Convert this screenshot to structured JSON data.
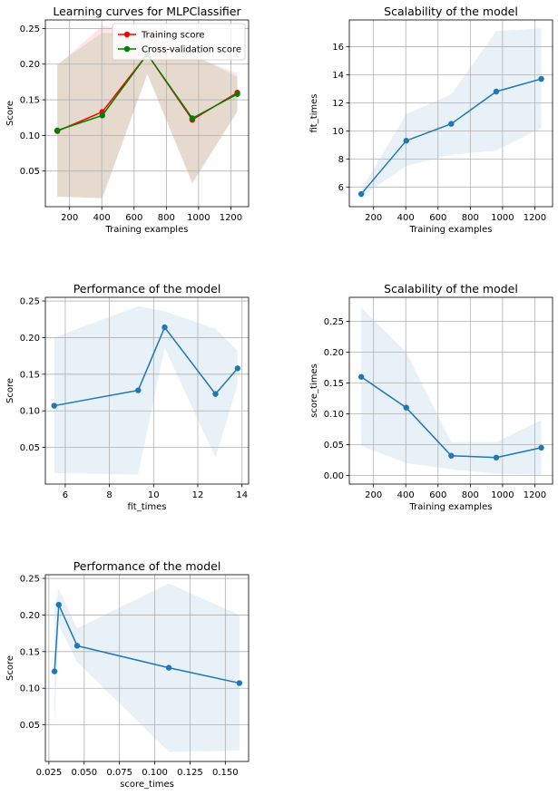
{
  "chart_data": [
    {
      "id": "learning-curves",
      "type": "line",
      "title": "Learning curves for MLPClassifier",
      "xlabel": "Training examples",
      "ylabel": "Score",
      "xlim": [
        50,
        1310
      ],
      "ylim": [
        0.0,
        0.262
      ],
      "xticks": [
        200,
        400,
        600,
        800,
        1000,
        1200
      ],
      "yticks": [
        0.05,
        0.1,
        0.15,
        0.2,
        0.25
      ],
      "ytick_labels": [
        "0.05",
        "0.10",
        "0.15",
        "0.20",
        "0.25"
      ],
      "grid": true,
      "legend": "top-right",
      "x": [
        124,
        403,
        682,
        961,
        1240
      ],
      "series": [
        {
          "name": "Training score",
          "color": "#ff0000",
          "values": [
            0.106,
            0.133,
            0.214,
            0.122,
            0.16
          ],
          "band_lower": [
            0.014,
            0.012,
            0.186,
            0.032,
            0.133
          ],
          "band_upper": [
            0.198,
            0.254,
            0.242,
            0.212,
            0.187
          ]
        },
        {
          "name": "Cross-validation score",
          "color": "#008000",
          "values": [
            0.107,
            0.128,
            0.214,
            0.124,
            0.158
          ],
          "band_lower": [
            0.014,
            0.012,
            0.186,
            0.034,
            0.134
          ],
          "band_upper": [
            0.2,
            0.244,
            0.242,
            0.214,
            0.182
          ]
        }
      ]
    },
    {
      "id": "scalability-fit",
      "type": "line",
      "title": "Scalability of the model",
      "xlabel": "Training examples",
      "ylabel": "fit_times",
      "xlim": [
        50,
        1310
      ],
      "ylim": [
        4.6,
        17.9
      ],
      "xticks": [
        200,
        400,
        600,
        800,
        1000,
        1200
      ],
      "yticks": [
        6,
        8,
        10,
        12,
        14,
        16
      ],
      "ytick_labels": [
        "6",
        "8",
        "10",
        "12",
        "14",
        "16"
      ],
      "grid": true,
      "x": [
        124,
        403,
        682,
        961,
        1240
      ],
      "series": [
        {
          "color": "#1f77b4",
          "values": [
            5.5,
            9.3,
            10.5,
            12.8,
            13.7
          ],
          "band_lower": [
            5.3,
            7.5,
            8.3,
            8.6,
            10.2
          ],
          "band_upper": [
            5.8,
            11.2,
            12.6,
            17.1,
            17.3
          ]
        }
      ]
    },
    {
      "id": "performance-fit",
      "type": "line",
      "title": "Performance of the model",
      "xlabel": "fit_times",
      "ylabel": "Score",
      "xlim": [
        5.1,
        14.3
      ],
      "ylim": [
        0.0,
        0.255
      ],
      "xticks": [
        6,
        8,
        10,
        12,
        14
      ],
      "yticks": [
        0.05,
        0.1,
        0.15,
        0.2,
        0.25
      ],
      "ytick_labels": [
        "0.05",
        "0.10",
        "0.15",
        "0.20",
        "0.25"
      ],
      "grid": true,
      "x": [
        5.5,
        9.3,
        10.5,
        12.8,
        13.8
      ],
      "series": [
        {
          "color": "#1f77b4",
          "values": [
            0.107,
            0.128,
            0.214,
            0.123,
            0.158
          ],
          "band_lower": [
            0.015,
            0.013,
            0.186,
            0.036,
            0.136
          ],
          "band_upper": [
            0.2,
            0.243,
            0.236,
            0.212,
            0.182
          ]
        }
      ]
    },
    {
      "id": "scalability-score",
      "type": "line",
      "title": "Scalability of the model",
      "xlabel": "Training examples",
      "ylabel": "score_times",
      "xlim": [
        50,
        1310
      ],
      "ylim": [
        -0.014,
        0.289
      ],
      "xticks": [
        200,
        400,
        600,
        800,
        1000,
        1200
      ],
      "yticks": [
        0.0,
        0.05,
        0.1,
        0.15,
        0.2,
        0.25
      ],
      "ytick_labels": [
        "0.00",
        "0.05",
        "0.10",
        "0.15",
        "0.20",
        "0.25"
      ],
      "grid": true,
      "x": [
        124,
        403,
        682,
        961,
        1240
      ],
      "series": [
        {
          "color": "#1f77b4",
          "values": [
            0.16,
            0.11,
            0.032,
            0.029,
            0.045
          ],
          "band_lower": [
            0.048,
            0.02,
            0.01,
            0.003,
            0.001
          ],
          "band_upper": [
            0.272,
            0.2,
            0.054,
            0.054,
            0.09
          ]
        }
      ]
    },
    {
      "id": "performance-score",
      "type": "line",
      "title": "Performance of the model",
      "xlabel": "score_times",
      "ylabel": "Score",
      "xlim": [
        0.0225,
        0.1665
      ],
      "ylim": [
        0.0,
        0.255
      ],
      "xticks": [
        0.025,
        0.05,
        0.075,
        0.1,
        0.125,
        0.15
      ],
      "xtick_labels": [
        "0.025",
        "0.050",
        "0.075",
        "0.100",
        "0.125",
        "0.150"
      ],
      "yticks": [
        0.05,
        0.1,
        0.15,
        0.2,
        0.25
      ],
      "ytick_labels": [
        "0.05",
        "0.10",
        "0.15",
        "0.20",
        "0.25"
      ],
      "grid": true,
      "x": [
        0.029,
        0.032,
        0.045,
        0.11,
        0.16
      ],
      "series": [
        {
          "color": "#1f77b4",
          "values": [
            0.123,
            0.214,
            0.158,
            0.128,
            0.107
          ],
          "band_lower": [
            0.05,
            0.186,
            0.136,
            0.013,
            0.015
          ],
          "band_upper": [
            0.21,
            0.236,
            0.182,
            0.243,
            0.2
          ]
        }
      ]
    }
  ]
}
